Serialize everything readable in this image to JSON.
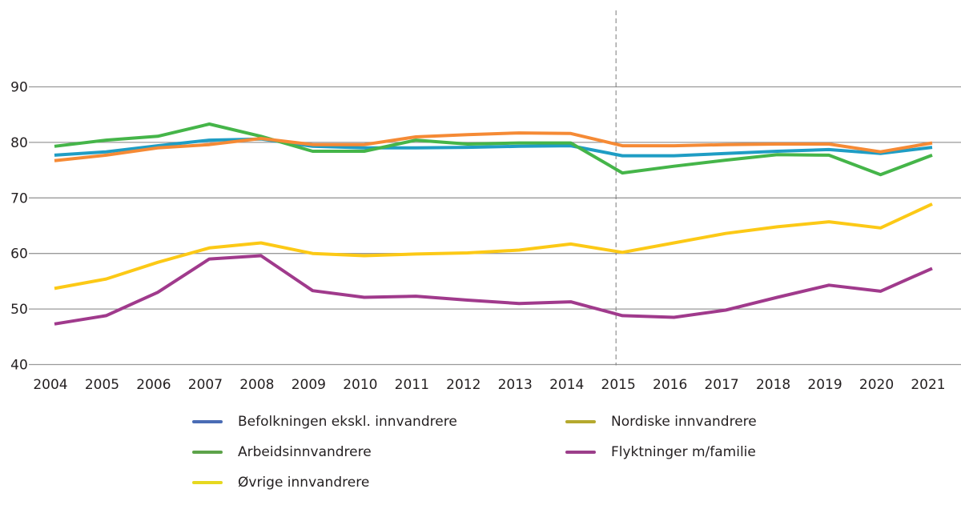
{
  "chart_data": {
    "type": "line",
    "title": "",
    "xlabel": "",
    "ylabel": "",
    "x": [
      "2004",
      "2005",
      "2006",
      "2007",
      "2008",
      "2009",
      "2010",
      "2011",
      "2012",
      "2013",
      "2014",
      "2015",
      "2016",
      "2017",
      "2018",
      "2019",
      "2020",
      "2021"
    ],
    "ylim": [
      40,
      90
    ],
    "yticks": [
      "40",
      "50",
      "60",
      "70",
      "80",
      "90"
    ],
    "grid": true,
    "vertical_marker": {
      "x": "2015",
      "style": "dashed"
    },
    "legend_position": "bottom",
    "series": [
      {
        "name": "Befolkningen ekskl. innvandrere",
        "line_color": "#1f9dc4",
        "legend_color": "#4a6cb5",
        "values": [
          77.7,
          78.3,
          79.4,
          80.4,
          80.6,
          79.3,
          79.0,
          79.0,
          79.1,
          79.3,
          79.4,
          77.6,
          77.6,
          78.0,
          78.4,
          78.7,
          78.0,
          79.1
        ]
      },
      {
        "name": "Nordiske innvandrere",
        "line_color": "#f58a35",
        "legend_color": "#b5a92e",
        "values": [
          76.7,
          77.7,
          79.0,
          79.6,
          80.7,
          79.6,
          79.6,
          81.0,
          81.4,
          81.7,
          81.6,
          79.4,
          79.4,
          79.6,
          79.7,
          79.7,
          78.3,
          79.9
        ]
      },
      {
        "name": "Arbeidsinnvandrere",
        "line_color": "#45b549",
        "legend_color": "#5da34a",
        "values": [
          79.3,
          80.4,
          81.1,
          83.3,
          81.1,
          78.4,
          78.4,
          80.4,
          79.7,
          79.9,
          79.9,
          74.5,
          75.7,
          76.8,
          77.8,
          77.7,
          74.2,
          77.7
        ]
      },
      {
        "name": "Flyktninger m/familie",
        "line_color": "#a03a8c",
        "legend_color": "#9c3e8a",
        "values": [
          47.3,
          48.8,
          53.0,
          59.0,
          59.6,
          53.3,
          52.1,
          52.3,
          51.6,
          51.0,
          51.3,
          48.8,
          48.5,
          49.8,
          52.1,
          54.3,
          53.2,
          57.3
        ]
      },
      {
        "name": "Øvrige innvandrere",
        "line_color": "#fcc916",
        "legend_color": "#e6d820",
        "values": [
          53.7,
          55.4,
          58.4,
          61.0,
          61.9,
          60.0,
          59.6,
          59.9,
          60.1,
          60.6,
          61.7,
          60.2,
          61.9,
          63.6,
          64.8,
          65.7,
          64.6,
          68.9
        ]
      }
    ],
    "legend": [
      {
        "label": "Befolkningen ekskl. innvandrere",
        "color": "#4a6cb5"
      },
      {
        "label": "Nordiske innvandrere",
        "color": "#b5a92e"
      },
      {
        "label": "Arbeidsinnvandrere",
        "color": "#5da34a"
      },
      {
        "label": "Flyktninger m/familie",
        "color": "#9c3e8a"
      },
      {
        "label": "Øvrige innvandrere",
        "color": "#e6d820"
      }
    ]
  }
}
